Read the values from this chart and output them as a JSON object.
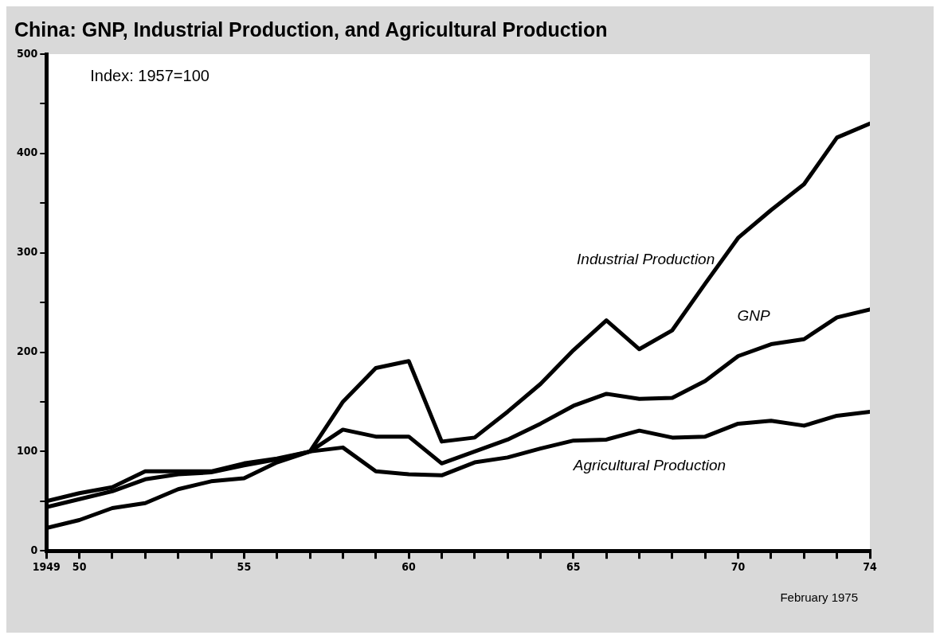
{
  "chart_data": {
    "type": "line",
    "title": "China: GNP, Industrial Production, and Agricultural Production",
    "annotations": [
      "Index: 1957=100",
      "February 1975"
    ],
    "x": [
      1949,
      1950,
      1951,
      1952,
      1953,
      1954,
      1955,
      1956,
      1957,
      1958,
      1959,
      1960,
      1961,
      1962,
      1963,
      1964,
      1965,
      1966,
      1967,
      1968,
      1969,
      1970,
      1971,
      1972,
      1973,
      1974
    ],
    "series": [
      {
        "name": "Industrial Production",
        "color": "#000000",
        "values": [
          23,
          31,
          43,
          48,
          62,
          70,
          73,
          89,
          100,
          150,
          184,
          191,
          110,
          114,
          140,
          168,
          202,
          232,
          203,
          222,
          269,
          315,
          343,
          369,
          416,
          430
        ]
      },
      {
        "name": "GNP",
        "color": "#000000",
        "values": [
          44,
          52,
          60,
          72,
          77,
          79,
          86,
          92,
          100,
          122,
          115,
          115,
          88,
          100,
          112,
          128,
          146,
          158,
          153,
          154,
          171,
          196,
          208,
          213,
          235,
          243
        ]
      },
      {
        "name": "Agricultural Production",
        "color": "#000000",
        "values": [
          50,
          58,
          64,
          80,
          80,
          80,
          88,
          93,
          100,
          104,
          80,
          77,
          76,
          89,
          94,
          103,
          111,
          112,
          121,
          114,
          115,
          128,
          131,
          126,
          136,
          140
        ]
      }
    ],
    "xlim": [
      1949,
      1974
    ],
    "xticks": [
      {
        "value": 1949,
        "label": "1949"
      },
      {
        "value": 1950,
        "label": "50"
      },
      {
        "value": 1951,
        "label": null
      },
      {
        "value": 1952,
        "label": null
      },
      {
        "value": 1953,
        "label": null
      },
      {
        "value": 1954,
        "label": null
      },
      {
        "value": 1955,
        "label": "55"
      },
      {
        "value": 1956,
        "label": null
      },
      {
        "value": 1957,
        "label": null
      },
      {
        "value": 1958,
        "label": null
      },
      {
        "value": 1959,
        "label": null
      },
      {
        "value": 1960,
        "label": "60"
      },
      {
        "value": 1961,
        "label": null
      },
      {
        "value": 1962,
        "label": null
      },
      {
        "value": 1963,
        "label": null
      },
      {
        "value": 1964,
        "label": null
      },
      {
        "value": 1965,
        "label": "65"
      },
      {
        "value": 1966,
        "label": null
      },
      {
        "value": 1967,
        "label": null
      },
      {
        "value": 1968,
        "label": null
      },
      {
        "value": 1969,
        "label": null
      },
      {
        "value": 1970,
        "label": "70"
      },
      {
        "value": 1971,
        "label": null
      },
      {
        "value": 1972,
        "label": null
      },
      {
        "value": 1973,
        "label": null
      },
      {
        "value": 1974,
        "label": "74"
      }
    ],
    "ylim": [
      0,
      500
    ],
    "yticks": [
      0,
      {
        "value": 50,
        "label": null
      },
      100,
      {
        "value": 150,
        "label": null
      },
      200,
      {
        "value": 250,
        "label": null
      },
      300,
      {
        "value": 350,
        "label": null
      },
      400,
      {
        "value": 450,
        "label": null
      },
      500
    ],
    "grid": false,
    "legend": false,
    "marker": "none",
    "line_style": "solid"
  }
}
